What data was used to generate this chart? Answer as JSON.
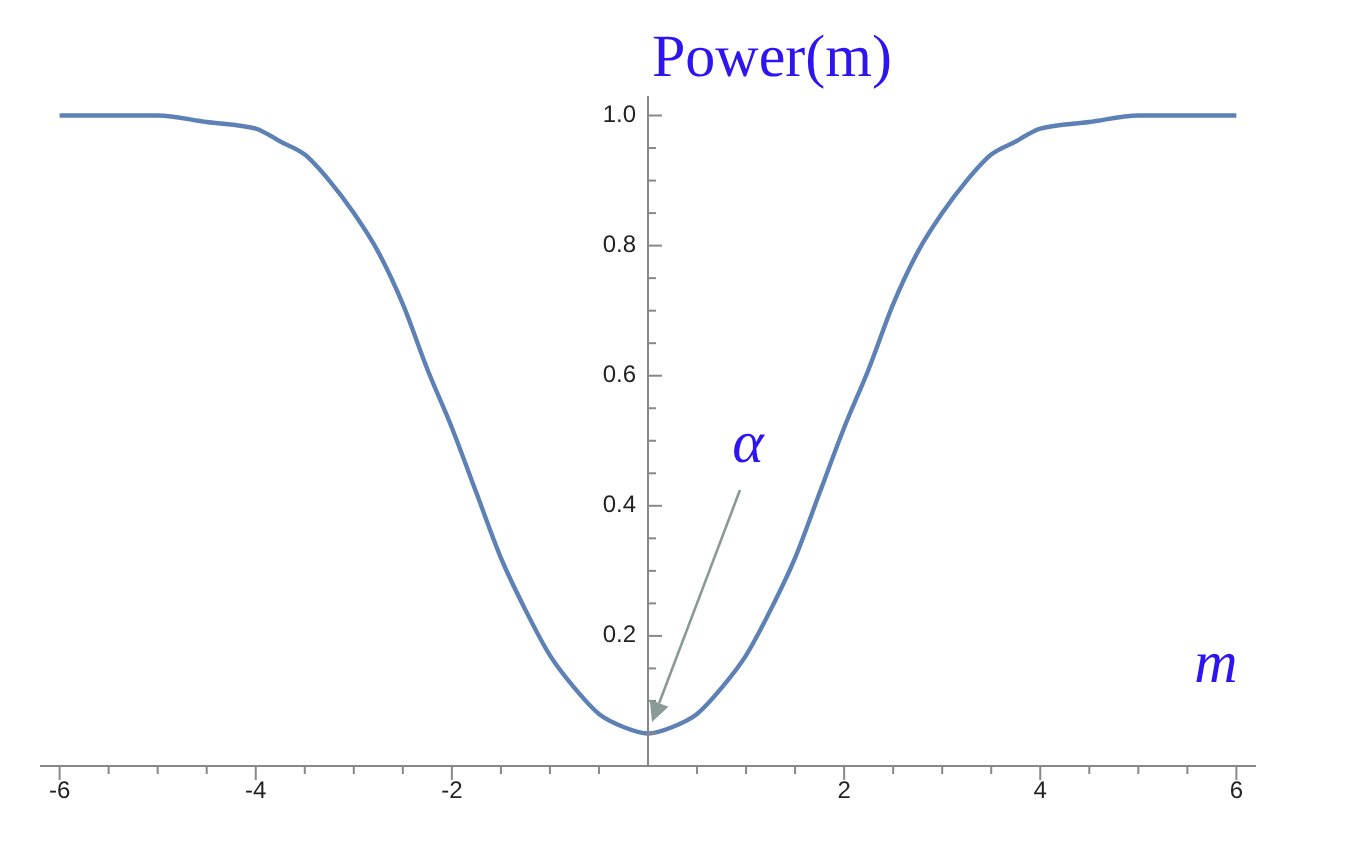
{
  "chart_data": {
    "type": "line",
    "title": "Power(m)",
    "xlabel": "m",
    "x": [
      -6,
      -5.5,
      -5,
      -4.5,
      -4,
      -3.75,
      -3.5,
      -3.25,
      -3,
      -2.75,
      -2.5,
      -2.25,
      -2,
      -1.75,
      -1.5,
      -1.25,
      -1,
      -0.75,
      -0.5,
      -0.25,
      0,
      0.25,
      0.5,
      0.75,
      1,
      1.25,
      1.5,
      1.75,
      2,
      2.25,
      2.5,
      2.75,
      3,
      3.25,
      3.5,
      3.75,
      4,
      4.5,
      5,
      5.5,
      6
    ],
    "series": [
      {
        "color": "#5e81b5",
        "values": [
          1,
          1,
          1,
          0.99,
          0.98,
          0.96,
          0.94,
          0.9,
          0.85,
          0.79,
          0.71,
          0.61,
          0.52,
          0.42,
          0.32,
          0.24,
          0.17,
          0.12,
          0.08,
          0.06,
          0.05,
          0.06,
          0.08,
          0.12,
          0.17,
          0.24,
          0.32,
          0.42,
          0.52,
          0.61,
          0.71,
          0.79,
          0.85,
          0.9,
          0.94,
          0.96,
          0.98,
          0.99,
          1,
          1,
          1
        ]
      }
    ],
    "xlim": [
      -6.2,
      6.2
    ],
    "ylim": [
      0,
      1.03
    ],
    "xticks": [
      -6,
      {
        "value": -5.5,
        "label": null
      },
      {
        "value": -5,
        "label": null
      },
      {
        "value": -4.5,
        "label": null
      },
      -4,
      {
        "value": -3.5,
        "label": null
      },
      {
        "value": -3,
        "label": null
      },
      {
        "value": -2.5,
        "label": null
      },
      -2,
      {
        "value": -1.5,
        "label": null
      },
      {
        "value": -1,
        "label": null
      },
      {
        "value": -0.5,
        "label": null
      },
      {
        "value": 0.5,
        "label": null
      },
      {
        "value": 1,
        "label": null
      },
      {
        "value": 1.5,
        "label": null
      },
      2,
      {
        "value": 2.5,
        "label": null
      },
      {
        "value": 3,
        "label": null
      },
      {
        "value": 3.5,
        "label": null
      },
      4,
      {
        "value": 4.5,
        "label": null
      },
      {
        "value": 5,
        "label": null
      },
      {
        "value": 5.5,
        "label": null
      },
      6
    ],
    "yticks": [
      {
        "value": 0.05,
        "label": null
      },
      {
        "value": 0.1,
        "label": null
      },
      {
        "value": 0.15,
        "label": null
      },
      0.2,
      {
        "value": 0.25,
        "label": null
      },
      {
        "value": 0.3,
        "label": null
      },
      {
        "value": 0.35,
        "label": null
      },
      0.4,
      {
        "value": 0.45,
        "label": null
      },
      {
        "value": 0.5,
        "label": null
      },
      {
        "value": 0.55,
        "label": null
      },
      0.6,
      {
        "value": 0.65,
        "label": null
      },
      {
        "value": 0.7,
        "label": null
      },
      {
        "value": 0.75,
        "label": null
      },
      0.8,
      {
        "value": 0.85,
        "label": null
      },
      {
        "value": 0.9,
        "label": null
      },
      {
        "value": 0.95,
        "label": null
      },
      {
        "value": 1,
        "label": "1.0"
      }
    ],
    "annotations": [
      "α"
    ],
    "marker": "none",
    "line_style": "solid"
  }
}
